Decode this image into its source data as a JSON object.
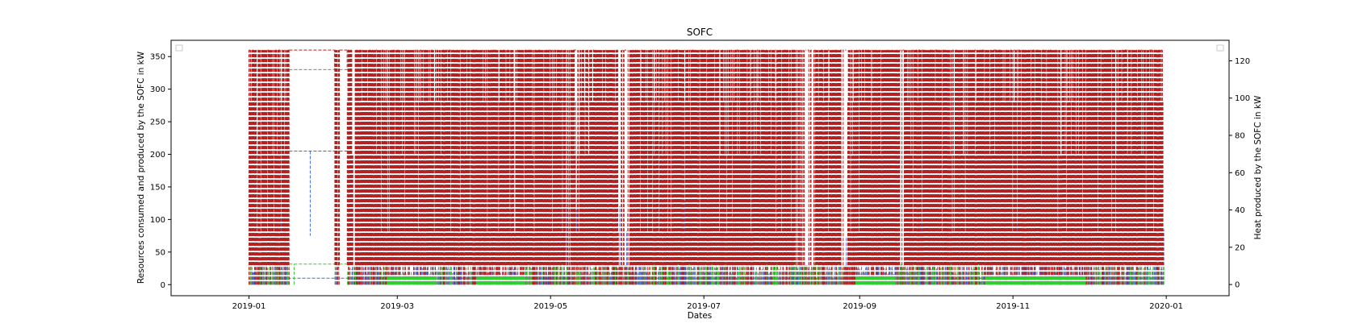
{
  "chart_data": {
    "type": "line",
    "title": "SOFC",
    "xlabel": "Dates",
    "ylabel": "Resources consumed and produced by the SOFC in kW",
    "y2label": "Heat produced by the SOFC in kW",
    "xlim": [
      "2018-12-01",
      "2020-01-26"
    ],
    "ylim": [
      -17,
      375
    ],
    "y2lim": [
      -6,
      131
    ],
    "xticks": [
      "2019-01",
      "2019-03",
      "2019-05",
      "2019-07",
      "2019-09",
      "2019-11",
      "2020-01"
    ],
    "yticks": [
      0,
      50,
      100,
      150,
      200,
      250,
      300,
      350
    ],
    "y2ticks": [
      0,
      20,
      40,
      60,
      80,
      100,
      120
    ],
    "grid": false,
    "legend": [
      "top-left",
      "top-right"
    ],
    "series": [
      {
        "color": "#b22222",
        "style": "dashed",
        "axis": "left",
        "min": 0,
        "max": 360,
        "note_values": [
          0,
          30,
          360
        ]
      },
      {
        "color": "#4169e1",
        "style": "dashed",
        "axis": "left",
        "min": 0,
        "max": 205,
        "note_values": [
          10,
          20,
          205
        ]
      },
      {
        "color": "#808080",
        "style": "dashed",
        "axis": "left",
        "min": 0,
        "max": 360,
        "note_values": [
          0,
          20,
          330,
          360
        ]
      },
      {
        "color": "#32cd32",
        "style": "dashed",
        "axis": "right",
        "min": 0,
        "max": 11,
        "note_values": [
          0,
          5,
          11
        ]
      }
    ],
    "outages": [
      {
        "start": "2019-01-17",
        "end": "2019-02-04"
      },
      {
        "start": "2019-02-06",
        "end": "2019-02-09"
      }
    ]
  }
}
